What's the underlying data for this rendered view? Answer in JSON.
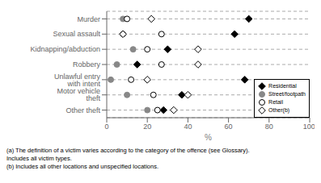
{
  "chart_data": {
    "type": "scatter",
    "xlabel": "%",
    "categories": [
      "Murder",
      "Sexual assault",
      "Kidnapping/abduction",
      "Robbery",
      "Unlawful entry with intent",
      "Motor vehicle theft",
      "Other theft"
    ],
    "series": [
      {
        "name": "Residential",
        "color": "black",
        "marker": "diamond",
        "values": [
          70,
          63,
          30,
          15,
          68,
          37,
          28
        ]
      },
      {
        "name": "Street/footpath",
        "color": "#888888",
        "marker": "circle",
        "values": [
          8,
          8,
          13,
          5,
          2,
          10,
          20
        ]
      },
      {
        "name": "Retail",
        "color": "black",
        "marker": "open_circle",
        "values": [
          10,
          27,
          20,
          27,
          12,
          23,
          25
        ]
      },
      {
        "name": "Other(b)",
        "color": "black",
        "marker": "open_diamond",
        "values": [
          22,
          8,
          45,
          45,
          20,
          40,
          33
        ]
      }
    ],
    "xlim": [
      0,
      100
    ],
    "xticks": [
      0,
      20,
      40,
      60,
      80,
      100
    ],
    "grid": true,
    "legend": "lower right",
    "annotations": [
      "(a) The definition of a victim varies according to the category of the offence (see Glossary).",
      "Includes all victim types.",
      "(b) Includes all other locations and unspecified locations."
    ]
  }
}
